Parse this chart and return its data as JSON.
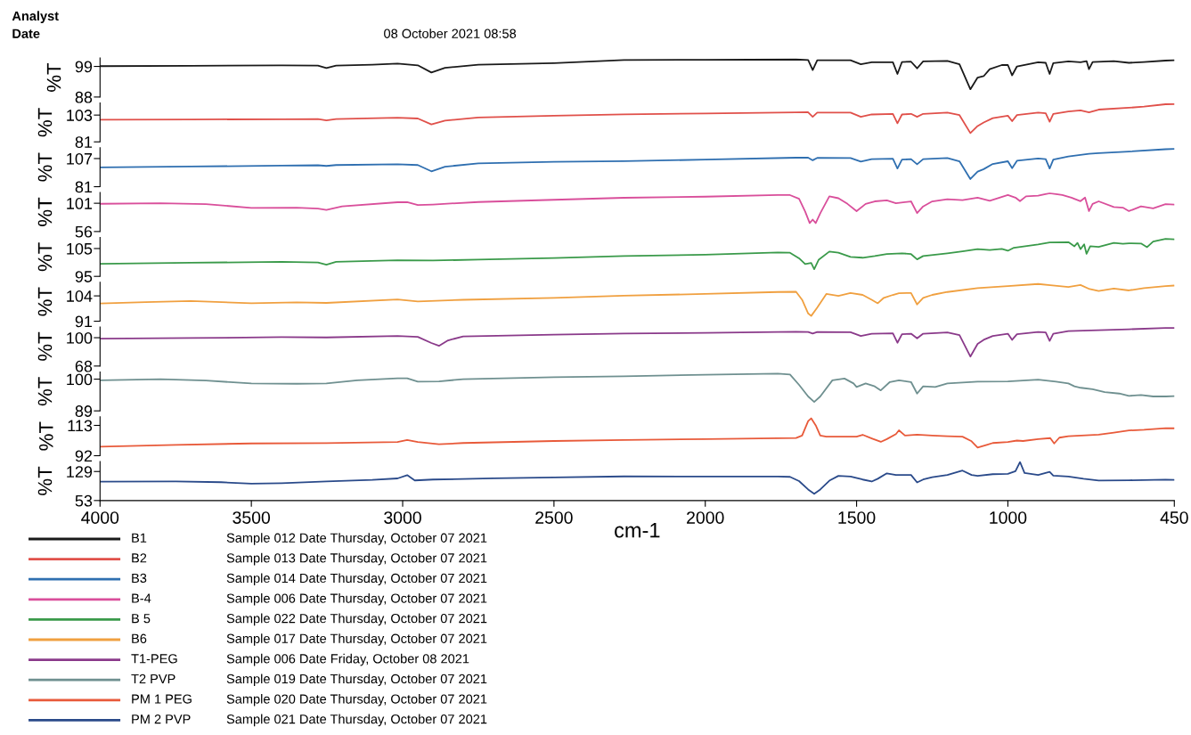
{
  "chart_data": [
    {
      "type": "line",
      "ylabel": "%T",
      "xlim": [
        4000,
        450
      ],
      "xticks": [
        4000,
        3500,
        3000,
        2500,
        2000,
        1500,
        1000,
        450
      ],
      "ylim": [
        88,
        102
      ],
      "yticks": [
        88,
        99
      ],
      "tick_labels": "y",
      "legend": "bottom",
      "annotations": [
        "Analyst",
        "Date",
        "08 October 2021 08:58",
        "Sample 012 Date Thursday, October 07 2021"
      ],
      "series": [
        {
          "name": "B1",
          "color": "#1a1a1a",
          "x": [
            4000,
            3700,
            3400,
            3280,
            3252,
            3220,
            3100,
            3017,
            2950,
            2905,
            2860,
            2750,
            2500,
            2269,
            2000,
            1700,
            1660,
            1645,
            1630,
            1520,
            1486,
            1450,
            1380,
            1365,
            1350,
            1320,
            1300,
            1280,
            1200,
            1160,
            1124,
            1100,
            1080,
            1060,
            1020,
            1000,
            986,
            970,
            900,
            875,
            862,
            850,
            800,
            760,
            740,
            732,
            720,
            650,
            600,
            550,
            479,
            450
          ],
          "values": [
            99.1,
            99.2,
            99.4,
            99.3,
            98.4,
            99.3,
            99.6,
            100,
            99.4,
            96.8,
            98.5,
            99.6,
            100.2,
            101.3,
            101.4,
            101.5,
            101.3,
            97.7,
            101.2,
            101.2,
            99.8,
            100.5,
            100.5,
            96.3,
            100.6,
            100.7,
            98.3,
            100.8,
            101.0,
            99.8,
            90.8,
            95,
            95.5,
            98,
            99.5,
            99.5,
            95.8,
            99,
            100.5,
            100.3,
            96.3,
            100.2,
            100.8,
            100.5,
            100.9,
            98,
            100.6,
            100.9,
            100.3,
            100.6,
            101.1,
            101.2
          ]
        }
      ]
    },
    {
      "type": "line",
      "ylabel": "%T",
      "xlim": [
        4000,
        450
      ],
      "xticks": [
        4000,
        3500,
        3000,
        2500,
        2000,
        1500,
        1000,
        450
      ],
      "ylim": [
        81,
        113
      ],
      "yticks": [
        81,
        103
      ],
      "tick_labels": "y",
      "legend": "bottom",
      "annotations": [
        "Sample 013 Date Thursday, October 07 2021"
      ],
      "series": [
        {
          "name": "B2",
          "color": "#e0504a",
          "x": [
            4000,
            3700,
            3400,
            3280,
            3252,
            3220,
            3017,
            2950,
            2905,
            2860,
            2750,
            2500,
            2269,
            2000,
            1700,
            1660,
            1645,
            1630,
            1520,
            1486,
            1450,
            1380,
            1365,
            1350,
            1320,
            1300,
            1280,
            1200,
            1160,
            1124,
            1100,
            1080,
            1050,
            1000,
            986,
            970,
            900,
            875,
            862,
            850,
            800,
            760,
            732,
            700,
            600,
            550,
            479,
            450
          ],
          "values": [
            99.2,
            99.4,
            99.6,
            99.7,
            98.6,
            99.8,
            100.8,
            100.2,
            95.3,
            98.5,
            101,
            102.5,
            103.6,
            104.3,
            105.2,
            105.3,
            101.6,
            105,
            105,
            101.6,
            103.5,
            104,
            96.3,
            103.5,
            104,
            101.6,
            104,
            105,
            103,
            88.2,
            94,
            96.9,
            100.5,
            102.5,
            98,
            103,
            105,
            104.5,
            97.5,
            104,
            106,
            106.8,
            105.3,
            107.5,
            109,
            110,
            111.9,
            112
          ]
        }
      ]
    },
    {
      "type": "line",
      "ylabel": "%T",
      "xlim": [
        4000,
        450
      ],
      "xticks": [
        4000,
        3500,
        3000,
        2500,
        2000,
        1500,
        1000,
        450
      ],
      "ylim": [
        81,
        117
      ],
      "yticks": [
        81,
        107
      ],
      "tick_labels": "y",
      "legend": "bottom",
      "annotations": [
        "Sample 014 Date Thursday, October 07 2021"
      ],
      "series": [
        {
          "name": "B3",
          "color": "#2f6fb0",
          "x": [
            4000,
            3700,
            3400,
            3280,
            3252,
            3220,
            3017,
            2950,
            2905,
            2860,
            2750,
            2500,
            2269,
            2000,
            1700,
            1660,
            1645,
            1630,
            1520,
            1486,
            1450,
            1380,
            1365,
            1350,
            1320,
            1300,
            1280,
            1200,
            1160,
            1124,
            1100,
            1080,
            1050,
            1000,
            986,
            970,
            900,
            875,
            862,
            850,
            800,
            732,
            700,
            600,
            479,
            450
          ],
          "values": [
            98.9,
            99.6,
            100.5,
            100.8,
            100.2,
            101,
            101.8,
            101,
            95.2,
            99.5,
            102.5,
            104,
            104.6,
            106,
            107.8,
            107.8,
            105.4,
            107.6,
            107.5,
            104.2,
            106.5,
            106.8,
            97.8,
            106,
            106.5,
            101.7,
            106.5,
            107.5,
            104.5,
            88.1,
            95,
            97.2,
            102,
            104.5,
            98.1,
            105,
            107,
            106.5,
            97.8,
            106,
            109,
            111.4,
            112,
            113.5,
            115.6,
            116
          ]
        }
      ]
    },
    {
      "type": "line",
      "ylabel": "%T",
      "xlim": [
        4000,
        450
      ],
      "xticks": [
        4000,
        3500,
        3000,
        2500,
        2000,
        1500,
        1000,
        450
      ],
      "ylim": [
        56,
        118
      ],
      "yticks": [
        56,
        101
      ],
      "tick_labels": "y",
      "legend": "bottom",
      "annotations": [
        "Sample 006 Date Thursday, October 07 2021"
      ],
      "series": [
        {
          "name": "B-4",
          "color": "#d94f9b",
          "x": [
            4000,
            3800,
            3650,
            3500,
            3350,
            3280,
            3252,
            3200,
            3017,
            2985,
            2950,
            2900,
            2750,
            2500,
            2269,
            2000,
            1760,
            1720,
            1690,
            1670,
            1655,
            1645,
            1635,
            1620,
            1590,
            1560,
            1530,
            1500,
            1470,
            1440,
            1400,
            1370,
            1320,
            1300,
            1280,
            1250,
            1200,
            1150,
            1100,
            1060,
            1000,
            975,
            960,
            940,
            900,
            862,
            820,
            790,
            760,
            745,
            732,
            720,
            700,
            650,
            620,
            600,
            560,
            520,
            479,
            450
          ],
          "values": [
            100.1,
            101,
            99.5,
            93.7,
            94,
            92.5,
            90.4,
            96,
            102.6,
            102.8,
            98.1,
            99,
            103,
            106.5,
            109.7,
            111.5,
            114,
            114,
            108,
            88,
            69.4,
            75,
            69.4,
            85,
            112,
            109,
            100,
            88.5,
            100,
            104,
            105.6,
            101,
            104,
            85.3,
            96,
            104,
            107.5,
            106,
            110,
            105,
            114,
            110,
            104.3,
            112,
            113,
            117,
            114,
            110,
            104.3,
            110,
            88.5,
            100,
            104,
            95,
            94,
            88.5,
            96,
            93,
            99.5,
            99
          ]
        }
      ]
    },
    {
      "type": "line",
      "ylabel": "%T",
      "xlim": [
        4000,
        450
      ],
      "xticks": [
        4000,
        3500,
        3000,
        2500,
        2000,
        1500,
        1000,
        450
      ],
      "ylim": [
        95,
        109
      ],
      "yticks": [
        95,
        105
      ],
      "tick_labels": "y",
      "legend": "bottom",
      "annotations": [
        "Sample 022 Date Thursday, October 07 2021"
      ],
      "series": [
        {
          "name": "B 5",
          "color": "#3a9a4a",
          "x": [
            4000,
            3700,
            3400,
            3280,
            3252,
            3220,
            3017,
            2900,
            2750,
            2500,
            2269,
            2000,
            1760,
            1720,
            1690,
            1670,
            1650,
            1640,
            1625,
            1590,
            1560,
            1520,
            1480,
            1440,
            1400,
            1350,
            1320,
            1300,
            1280,
            1200,
            1150,
            1100,
            1060,
            1020,
            1000,
            980,
            900,
            862,
            800,
            780,
            770,
            760,
            748,
            740,
            728,
            700,
            650,
            620,
            600,
            560,
            540,
            520,
            479,
            450
          ],
          "values": [
            99.5,
            99.9,
            100.2,
            100,
            99.2,
            100.2,
            100.8,
            100.7,
            101,
            101.6,
            102.3,
            102.8,
            103.6,
            103.5,
            101.5,
            99.4,
            99.8,
            97.6,
            101,
            103.9,
            103.5,
            102,
            101.7,
            102.3,
            103,
            103.3,
            103,
            101.1,
            102.3,
            103.3,
            104,
            104.8,
            104.5,
            104.9,
            104.2,
            105.3,
            106.5,
            107.2,
            107.3,
            105.8,
            107,
            104.8,
            106.5,
            103.1,
            105.8,
            105.6,
            107,
            106.7,
            106.9,
            106.8,
            105.5,
            107.5,
            108.5,
            108.3
          ]
        }
      ]
    },
    {
      "type": "line",
      "ylabel": "%T",
      "xlim": [
        4000,
        450
      ],
      "xticks": [
        4000,
        3500,
        3000,
        2500,
        2000,
        1500,
        1000,
        450
      ],
      "ylim": [
        91,
        111
      ],
      "yticks": [
        91,
        104
      ],
      "tick_labels": "y",
      "legend": "bottom",
      "annotations": [
        "Sample 017 Date Thursday, October 07 2021"
      ],
      "series": [
        {
          "name": "B6",
          "color": "#f0a040",
          "x": [
            4000,
            3850,
            3700,
            3500,
            3350,
            3252,
            3017,
            2950,
            2800,
            2500,
            2269,
            2000,
            1760,
            1700,
            1680,
            1660,
            1650,
            1630,
            1600,
            1560,
            1520,
            1480,
            1450,
            1430,
            1410,
            1380,
            1360,
            1320,
            1300,
            1280,
            1250,
            1200,
            1100,
            1000,
            900,
            860,
            800,
            760,
            730,
            700,
            650,
            600,
            550,
            479,
            450
          ],
          "values": [
            100.1,
            100.8,
            101.4,
            100.2,
            100.7,
            100.4,
            102.2,
            101.1,
            102,
            103,
            104.1,
            105,
            106,
            106.1,
            102,
            95,
            93.7,
            98,
            105,
            104,
            105.5,
            104.5,
            102,
            100.2,
            103,
            104.5,
            105.4,
            105.5,
            99.6,
            103,
            104.5,
            106,
            108,
            109,
            110.1,
            109.5,
            108.6,
            109.6,
            107.5,
            106.5,
            107.8,
            106.8,
            108,
            109,
            109.3
          ]
        }
      ]
    },
    {
      "type": "line",
      "ylabel": "%T",
      "xlim": [
        4000,
        450
      ],
      "xticks": [
        4000,
        3500,
        3000,
        2500,
        2000,
        1500,
        1000,
        450
      ],
      "ylim": [
        68,
        112
      ],
      "yticks": [
        68,
        100
      ],
      "tick_labels": "y",
      "legend": "bottom",
      "annotations": [
        "Sample 006 Date Friday, October 08 2021"
      ],
      "series": [
        {
          "name": "T1-PEG",
          "color": "#8a3a8a",
          "x": [
            4000,
            3700,
            3400,
            3252,
            3017,
            2950,
            2905,
            2880,
            2850,
            2800,
            2500,
            2269,
            2000,
            1700,
            1660,
            1645,
            1630,
            1520,
            1486,
            1450,
            1380,
            1365,
            1350,
            1320,
            1300,
            1280,
            1200,
            1160,
            1124,
            1100,
            1080,
            1050,
            1000,
            986,
            970,
            900,
            875,
            862,
            850,
            800,
            700,
            600,
            479,
            450
          ],
          "values": [
            99,
            99.6,
            100.6,
            100.3,
            101.9,
            101,
            94,
            90.8,
            97,
            101.5,
            103.5,
            104.7,
            105.5,
            106.8,
            106.5,
            104.7,
            106.5,
            106.3,
            101.9,
            104.5,
            105,
            94.3,
            104,
            104.5,
            99.3,
            104.5,
            106,
            103,
            78.7,
            93,
            97.6,
            102,
            104.5,
            97.6,
            104,
            106.5,
            106,
            96.4,
            104.5,
            107.5,
            108.5,
            109.5,
            110.9,
            111
          ]
        }
      ]
    },
    {
      "type": "line",
      "ylabel": "%T",
      "xlim": [
        4000,
        450
      ],
      "xticks": [
        4000,
        3500,
        3000,
        2500,
        2000,
        1500,
        1000,
        450
      ],
      "ylim": [
        89,
        102.5
      ],
      "yticks": [
        89,
        100
      ],
      "tick_labels": "y",
      "legend": "bottom",
      "annotations": [
        "Sample 019 Date Thursday, October 07 2021"
      ],
      "series": [
        {
          "name": "T2 PVP",
          "color": "#6f9090",
          "x": [
            4000,
            3800,
            3650,
            3500,
            3350,
            3252,
            3150,
            3017,
            2985,
            2950,
            2880,
            2800,
            2500,
            2269,
            2000,
            1760,
            1720,
            1690,
            1660,
            1640,
            1620,
            1580,
            1540,
            1510,
            1500,
            1470,
            1440,
            1420,
            1390,
            1360,
            1320,
            1300,
            1280,
            1240,
            1200,
            1100,
            1000,
            900,
            841,
            800,
            780,
            759,
            720,
            680,
            632,
            600,
            560,
            520,
            478,
            450
          ],
          "values": [
            99.6,
            100,
            99.5,
            98.5,
            98.4,
            98.5,
            99.6,
            100.3,
            100.3,
            99.1,
            99.2,
            100,
            100.7,
            101,
            101.5,
            101.9,
            101.6,
            98,
            94,
            92.1,
            94,
            99.6,
            100.2,
            98.5,
            97.3,
            98.5,
            97.5,
            96.1,
            99,
            99.6,
            99,
            95,
            97.5,
            97.3,
            98.5,
            99.1,
            99.2,
            99.8,
            99.1,
            98.5,
            97.5,
            97,
            96.5,
            95.5,
            95,
            94.2,
            94.5,
            94,
            94,
            94.1
          ]
        }
      ]
    },
    {
      "type": "line",
      "ylabel": "%T",
      "xlim": [
        4000,
        450
      ],
      "xticks": [
        4000,
        3500,
        3000,
        2500,
        2000,
        1500,
        1000,
        450
      ],
      "ylim": [
        92,
        119
      ],
      "yticks": [
        92,
        113
      ],
      "tick_labels": "y",
      "legend": "bottom",
      "annotations": [
        "Sample 020 Date Thursday, October 07 2021"
      ],
      "series": [
        {
          "name": "PM 1 PEG",
          "color": "#e85a3a",
          "x": [
            4000,
            3750,
            3500,
            3252,
            3017,
            2985,
            2950,
            2880,
            2800,
            2500,
            2269,
            2000,
            1700,
            1680,
            1660,
            1650,
            1635,
            1620,
            1600,
            1500,
            1480,
            1450,
            1420,
            1400,
            1370,
            1360,
            1340,
            1300,
            1250,
            1200,
            1150,
            1120,
            1100,
            1070,
            1050,
            1000,
            970,
            950,
            900,
            860,
            847,
            830,
            800,
            700,
            650,
            600,
            550,
            479,
            450
          ],
          "values": [
            98.3,
            99.5,
            100.5,
            100.7,
            101.5,
            102.9,
            101.5,
            99.9,
            100.8,
            102.2,
            102.9,
            103.5,
            104.3,
            106,
            116,
            117.9,
            113,
            106,
            105.2,
            105.2,
            106.5,
            104,
            101.6,
            103.5,
            107,
            109.6,
            106,
            106.6,
            106,
            105.5,
            105.2,
            102,
            97.7,
            99.5,
            100.8,
            101.5,
            102.5,
            102.2,
            103.5,
            104.2,
            100.5,
            104.5,
            105.5,
            106.6,
            108,
            109.5,
            110,
            111.1,
            111
          ]
        }
      ]
    },
    {
      "type": "line",
      "ylabel": "%T",
      "xlabel": "cm-1",
      "xlim": [
        4000,
        450
      ],
      "xticks": [
        4000,
        3500,
        3000,
        2500,
        2000,
        1500,
        1000,
        450
      ],
      "ylim": [
        53,
        155
      ],
      "yticks": [
        53,
        129
      ],
      "legend": "bottom",
      "annotations": [
        "Sample 021 Date Thursday, October 07 2021"
      ],
      "series": [
        {
          "name": "PM 2 PVP",
          "color": "#2a4a8a",
          "x": [
            4000,
            3750,
            3600,
            3500,
            3400,
            3252,
            3100,
            3017,
            2985,
            2960,
            2900,
            2700,
            2500,
            2269,
            2000,
            1760,
            1720,
            1690,
            1660,
            1640,
            1620,
            1590,
            1560,
            1520,
            1480,
            1450,
            1430,
            1400,
            1370,
            1320,
            1300,
            1280,
            1250,
            1200,
            1150,
            1120,
            1100,
            1050,
            1000,
            975,
            960,
            945,
            900,
            862,
            850,
            800,
            750,
            700,
            600,
            479,
            450
          ],
          "values": [
            102.3,
            103,
            101,
            97.1,
            98.5,
            103,
            107,
            110.9,
            119.5,
            105.7,
            108,
            111,
            113.5,
            116.1,
            115.8,
            115.7,
            115,
            104,
            82,
            70.7,
            82,
            105,
            117.6,
            116,
            108,
            102.8,
            110,
            124.2,
            120,
            120,
            100.4,
            108,
            114,
            120,
            131.4,
            120,
            117.6,
            122,
            123,
            130,
            154,
            125,
            120,
            128,
            118,
            115.7,
            110,
            105.2,
            106,
            107.6,
            107
          ]
        }
      ]
    }
  ]
}
